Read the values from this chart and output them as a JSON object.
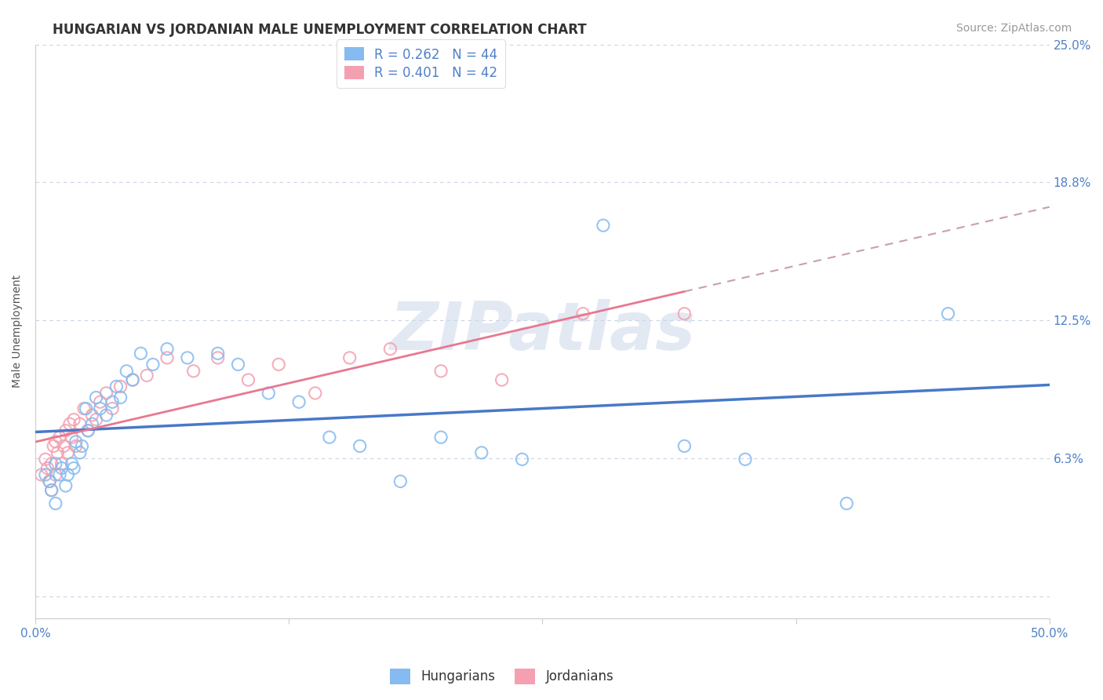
{
  "title": "HUNGARIAN VS JORDANIAN MALE UNEMPLOYMENT CORRELATION CHART",
  "source": "Source: ZipAtlas.com",
  "ylabel": "Male Unemployment",
  "xlim": [
    0.0,
    0.5
  ],
  "ylim": [
    -0.01,
    0.25
  ],
  "yticks": [
    0.0,
    0.0625,
    0.125,
    0.1875,
    0.25
  ],
  "ytick_labels": [
    "",
    "6.3%",
    "12.5%",
    "18.8%",
    "25.0%"
  ],
  "xticks": [
    0.0,
    0.125,
    0.25,
    0.375,
    0.5
  ],
  "xtick_labels": [
    "0.0%",
    "",
    "",
    "",
    "50.0%"
  ],
  "hungarian_color": "#85bbf0",
  "jordanian_color": "#f4a0b0",
  "trend_hun_color": "#4878c8",
  "trend_jor_color": "#e87890",
  "trend_jor_ext_color": "#c8a0a8",
  "grid_color": "#c8d4e4",
  "background_color": "#ffffff",
  "label_color": "#5080c8",
  "R_hun": 0.262,
  "N_hun": 44,
  "R_jor": 0.401,
  "N_jor": 42,
  "hun_x": [
    0.005,
    0.007,
    0.008,
    0.01,
    0.01,
    0.012,
    0.013,
    0.015,
    0.016,
    0.018,
    0.019,
    0.02,
    0.022,
    0.023,
    0.025,
    0.026,
    0.028,
    0.03,
    0.032,
    0.035,
    0.038,
    0.04,
    0.042,
    0.045,
    0.048,
    0.052,
    0.058,
    0.065,
    0.075,
    0.09,
    0.1,
    0.115,
    0.13,
    0.145,
    0.16,
    0.18,
    0.2,
    0.22,
    0.24,
    0.28,
    0.32,
    0.35,
    0.4,
    0.45
  ],
  "hun_y": [
    0.055,
    0.052,
    0.048,
    0.06,
    0.042,
    0.055,
    0.058,
    0.05,
    0.055,
    0.06,
    0.058,
    0.07,
    0.065,
    0.068,
    0.085,
    0.075,
    0.078,
    0.09,
    0.085,
    0.082,
    0.088,
    0.095,
    0.09,
    0.102,
    0.098,
    0.11,
    0.105,
    0.112,
    0.108,
    0.11,
    0.105,
    0.092,
    0.088,
    0.072,
    0.068,
    0.052,
    0.072,
    0.065,
    0.062,
    0.168,
    0.068,
    0.062,
    0.042,
    0.128
  ],
  "jor_x": [
    0.003,
    0.005,
    0.006,
    0.007,
    0.008,
    0.008,
    0.009,
    0.01,
    0.01,
    0.011,
    0.012,
    0.013,
    0.014,
    0.015,
    0.016,
    0.017,
    0.018,
    0.019,
    0.02,
    0.022,
    0.024,
    0.026,
    0.028,
    0.03,
    0.032,
    0.035,
    0.038,
    0.042,
    0.048,
    0.055,
    0.065,
    0.078,
    0.09,
    0.105,
    0.12,
    0.138,
    0.155,
    0.175,
    0.2,
    0.23,
    0.27,
    0.32
  ],
  "jor_y": [
    0.055,
    0.062,
    0.058,
    0.052,
    0.048,
    0.06,
    0.068,
    0.055,
    0.07,
    0.065,
    0.072,
    0.06,
    0.068,
    0.075,
    0.065,
    0.078,
    0.072,
    0.08,
    0.068,
    0.078,
    0.085,
    0.075,
    0.082,
    0.08,
    0.088,
    0.092,
    0.085,
    0.095,
    0.098,
    0.1,
    0.108,
    0.102,
    0.108,
    0.098,
    0.105,
    0.092,
    0.108,
    0.112,
    0.102,
    0.098,
    0.128,
    0.128
  ],
  "watermark_text": "ZIPatlas",
  "title_fontsize": 12,
  "axis_label_fontsize": 10,
  "tick_fontsize": 11,
  "legend_fontsize": 12,
  "source_fontsize": 10
}
